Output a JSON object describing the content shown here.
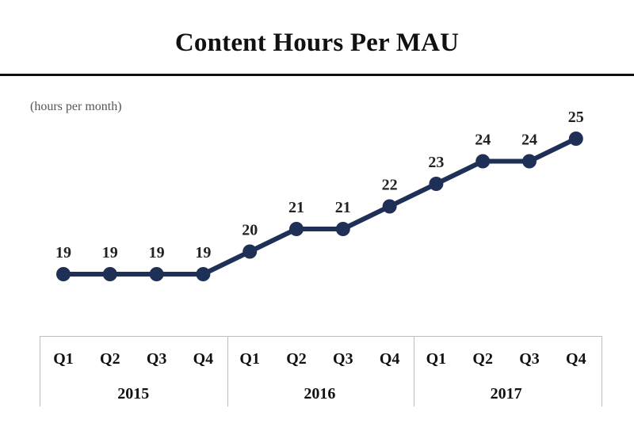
{
  "title": "Content Hours Per MAU",
  "unit_label": "(hours per month)",
  "chart_data": {
    "type": "line",
    "title": "Content Hours Per MAU",
    "ylabel": "(hours per month)",
    "xlabel": "",
    "categories": [
      "Q1",
      "Q2",
      "Q3",
      "Q4",
      "Q1",
      "Q2",
      "Q3",
      "Q4",
      "Q1",
      "Q2",
      "Q3",
      "Q4"
    ],
    "groups": [
      {
        "label": "2015",
        "span": 4
      },
      {
        "label": "2016",
        "span": 4
      },
      {
        "label": "2017",
        "span": 4
      }
    ],
    "series": [
      {
        "values": [
          19,
          19,
          19,
          19,
          20,
          21,
          21,
          22,
          23,
          24,
          24,
          25
        ],
        "color": "#1f3056"
      }
    ],
    "ylim": [
      18,
      26
    ],
    "grid": false,
    "data_labels": true
  }
}
